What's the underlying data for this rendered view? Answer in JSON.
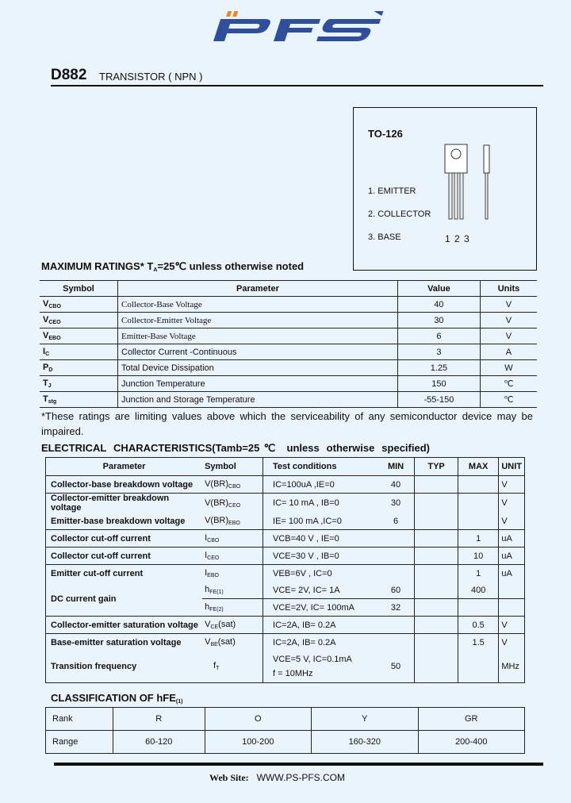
{
  "logo": {
    "text": "PFS",
    "colors": {
      "blue": "#2f4f9a",
      "orange": "#e8882a"
    }
  },
  "header": {
    "part_number": "D882",
    "description": "TRANSISTOR ( NPN )"
  },
  "package": {
    "name": "TO-126",
    "pins": [
      "1. EMITTER",
      "2. COLLECTOR",
      "3. BASE"
    ],
    "pin_numbers": "1 2 3"
  },
  "max_ratings": {
    "title_pre": "MAXIMUM RATINGS* T",
    "title_sub": "A",
    "title_post": "=25℃ unless otherwise noted",
    "headers": [
      "Symbol",
      "Parameter",
      "Value",
      "Units"
    ],
    "rows": [
      {
        "sym": "V",
        "sub": "CBO",
        "param": "Collector-Base Voltage",
        "value": "40",
        "unit": "V"
      },
      {
        "sym": "V",
        "sub": "CEO",
        "param": "Collector-Emitter Voltage",
        "value": "30",
        "unit": "V"
      },
      {
        "sym": "V",
        "sub": "EBO",
        "param": "Emitter-Base Voltage",
        "value": "6",
        "unit": "V"
      },
      {
        "sym": "I",
        "sub": "C",
        "param": "Collector Current -Continuous",
        "value": "3",
        "unit": "A"
      },
      {
        "sym": "P",
        "sub": "D",
        "param": "Total Device Dissipation",
        "value": "1.25",
        "unit": "W"
      },
      {
        "sym": "T",
        "sub": "J",
        "param": "Junction Temperature",
        "value": "150",
        "unit": "℃"
      },
      {
        "sym": "T",
        "sub": "stg",
        "param": "Junction and Storage Temperature",
        "value": "-55-150",
        "unit": "℃"
      }
    ]
  },
  "note": "*These ratings are limiting values above which the serviceability of any semiconductor device may be impaired.",
  "electrical": {
    "title": "ELECTRICAL CHARACTERISTICS(Tamb=25℃ unless otherwise specified)",
    "headers": [
      "Parameter",
      "Symbol",
      "Test conditions",
      "MIN",
      "TYP",
      "MAX",
      "UNIT"
    ],
    "rows": [
      {
        "param": "Collector-base breakdown voltage",
        "sym": "V(BR)",
        "sub": "CBO",
        "cond": "IC=100uA ,IE=0",
        "min": "40",
        "typ": "",
        "max": "",
        "unit": "V"
      },
      {
        "param": "Collector-emitter breakdown voltage",
        "sym": "V(BR)",
        "sub": "CEO",
        "cond": "IC= 10 mA ,  IB=0",
        "min": "30",
        "typ": "",
        "max": "",
        "unit": "V"
      },
      {
        "param": "Emitter-base breakdown voltage",
        "sym": "V(BR)",
        "sub": "EBO",
        "cond": "IE= 100 mA ,IC=0",
        "min": "6",
        "typ": "",
        "max": "",
        "unit": "V"
      },
      {
        "param": "Collector cut-off current",
        "sym": "I",
        "sub": "CBO",
        "cond": "VCB=40 V ,   IE=0",
        "min": "",
        "typ": "",
        "max": "1",
        "unit": "uA"
      },
      {
        "param": "Collector cut-off current",
        "sym": "I",
        "sub": "CEO",
        "cond": "VCE=30 V ,   IB=0",
        "min": "",
        "typ": "",
        "max": "10",
        "unit": "uA"
      },
      {
        "param": "Emitter cut-off current",
        "sym": "I",
        "sub": "EBO",
        "cond": "VEB=6V ,    IC=0",
        "min": "",
        "typ": "",
        "max": "1",
        "unit": "uA"
      },
      {
        "param": "DC current gain",
        "sym": "h",
        "sub": "FE(1)",
        "cond": "VCE= 2V, IC= 1A",
        "min": "60",
        "typ": "",
        "max": "400",
        "unit": ""
      },
      {
        "param": "",
        "sym": "h",
        "sub": "FE(2)",
        "cond": "VCE=2V, IC= 100mA",
        "min": "32",
        "typ": "",
        "max": "",
        "unit": ""
      },
      {
        "param": "Collector-emitter saturation voltage",
        "sym": "V",
        "sub": "CE",
        "sym_post": "(sat)",
        "cond": "IC=2A,   IB= 0.2A",
        "min": "",
        "typ": "",
        "max": "0.5",
        "unit": "V"
      },
      {
        "param": "Base-emitter saturation voltage",
        "sym": "V",
        "sub": "BE",
        "sym_post": "(sat)",
        "cond": "IC=2A,   IB= 0.2A",
        "min": "",
        "typ": "",
        "max": "1.5",
        "unit": "V"
      },
      {
        "param": "Transition frequency",
        "sym": "f",
        "sub": "T",
        "cond": "VCE=5 V,   IC=0.1mA",
        "cond2": "f = 10MHz",
        "min": "50",
        "typ": "",
        "max": "",
        "unit": "MHz"
      }
    ]
  },
  "classification": {
    "title": "CLASSIFICATION OF hFE",
    "title_sub": "(1)",
    "rank_label": "Rank",
    "range_label": "Range",
    "ranks": [
      "R",
      "O",
      "Y",
      "GR"
    ],
    "ranges": [
      "60-120",
      "100-200",
      "160-320",
      "200-400"
    ]
  },
  "footer": {
    "label": "Web Site:",
    "url": "WWW.PS-PFS.COM"
  }
}
